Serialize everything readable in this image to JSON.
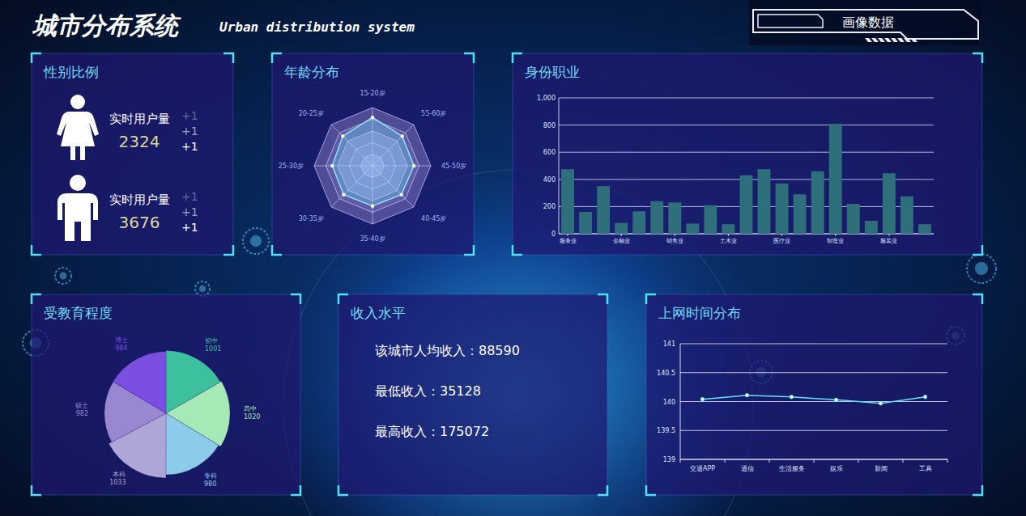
{
  "header": {
    "title": "城市分布系统",
    "subtitle": "Urban distribution system",
    "badge": "画像数据"
  },
  "gender": {
    "title": "性别比例",
    "items": [
      {
        "label": "实时用户量",
        "value": 2324,
        "increments": [
          "+1",
          "+1",
          "+1"
        ]
      },
      {
        "label": "实时用户量",
        "value": 3676,
        "increments": [
          "+1",
          "+1",
          "+1"
        ]
      }
    ]
  },
  "income": {
    "title": "收入水平",
    "rows": [
      {
        "label": "该城市人均收入：",
        "value": 88590
      },
      {
        "label": "最低收入：",
        "value": 35128
      },
      {
        "label": "最高收入：",
        "value": 175072
      }
    ]
  },
  "chart_data": [
    {
      "type": "radar",
      "title": "年龄分布",
      "categories": [
        "15-20岁",
        "55-60岁",
        "45-50岁",
        "40-45岁",
        "35-40岁",
        "30-35岁",
        "25-30岁",
        "20-25岁"
      ],
      "values": [
        83,
        72,
        71,
        70,
        69,
        70,
        69,
        72
      ],
      "color": "#8fe3f0",
      "ylim": [
        0,
        100
      ],
      "yticks": [
        0,
        20,
        40,
        60,
        80,
        100
      ],
      "tick_labels": "x"
    },
    {
      "type": "bar",
      "title": "身份职业",
      "categories": [
        "服务业",
        null,
        null,
        "金融业",
        null,
        null,
        "销售业",
        null,
        null,
        "土木业",
        null,
        null,
        "医疗业",
        null,
        null,
        "制造业",
        null,
        null,
        "服装业",
        null,
        null
      ],
      "values": [
        475,
        160,
        350,
        80,
        165,
        240,
        230,
        75,
        210,
        70,
        430,
        475,
        370,
        290,
        460,
        810,
        220,
        95,
        445,
        275,
        70
      ],
      "color": "#2f6f7c",
      "ylim": [
        0,
        1000
      ],
      "yticks": [
        0,
        200,
        400,
        600,
        800,
        {
          "value": 1000,
          "label": "1,000"
        }
      ],
      "grid": true
    },
    {
      "type": "rose",
      "title": "受教育程度",
      "categories": [
        "初中",
        "高中",
        "专科",
        "本科",
        "硕士",
        "博士"
      ],
      "values": [
        1001,
        1020,
        980,
        1033,
        982,
        984
      ],
      "colors": [
        "#3cc09e",
        "#a6e9b6",
        "#8ccbea",
        "#aea6d6",
        "#9987d2",
        "#7b4fe2"
      ],
      "data_labels": true
    },
    {
      "type": "line",
      "title": "上网时间分布",
      "categories": [
        "交通APP",
        "通信",
        "生活服务",
        "娱乐",
        "新闻",
        "工具"
      ],
      "values": [
        140.04,
        140.11,
        140.08,
        140.03,
        139.97,
        140.08
      ],
      "color": "#63e3ec",
      "ylim": [
        139,
        141
      ],
      "yticks": [
        139,
        139.5,
        140,
        140.5,
        141
      ],
      "grid": true,
      "marker": "circle"
    }
  ]
}
